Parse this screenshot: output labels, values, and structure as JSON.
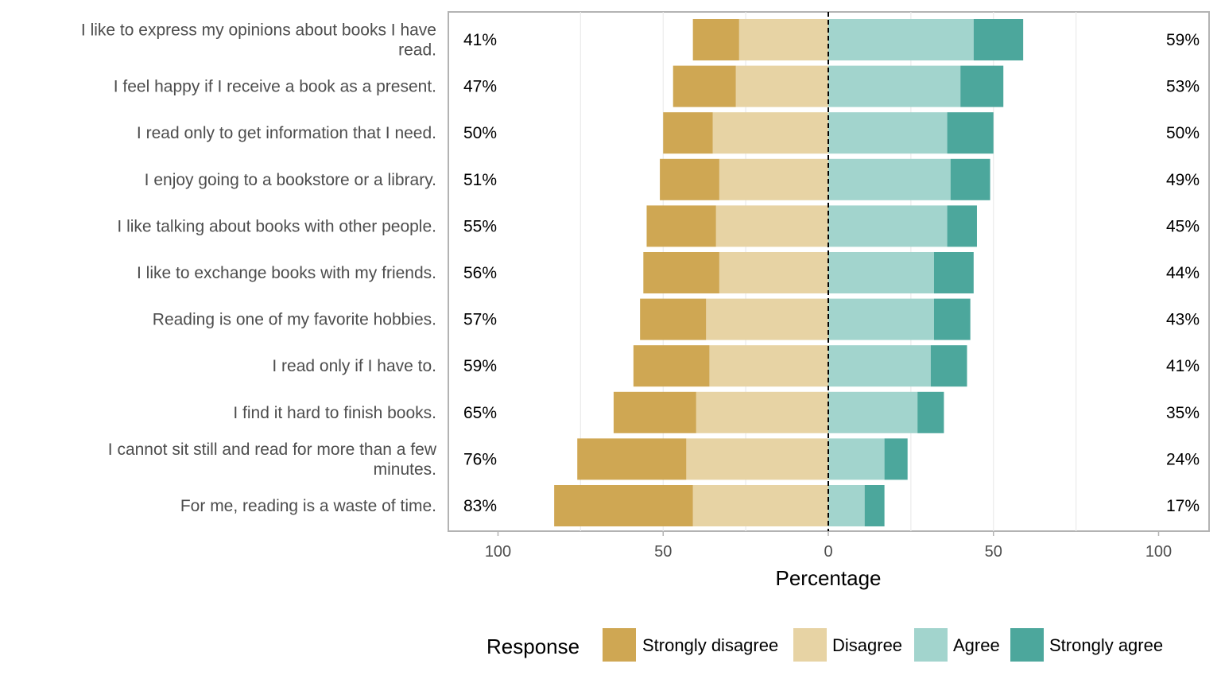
{
  "chart_data": {
    "type": "bar",
    "orientation": "horizontal-diverging",
    "xlabel": "Percentage",
    "xlim": [
      -100,
      100
    ],
    "xticks": [
      -100,
      -50,
      0,
      50,
      100
    ],
    "xtick_labels": [
      "100",
      "50",
      "0",
      "50",
      "100"
    ],
    "grid": true,
    "legend": {
      "title": "Response",
      "position": "bottom",
      "entries": [
        "Strongly disagree",
        "Disagree",
        "Agree",
        "Strongly agree"
      ]
    },
    "colors": {
      "Strongly disagree": "#cfa753",
      "Disagree": "#e7d3a4",
      "Agree": "#a2d4cd",
      "Strongly agree": "#4ca79c"
    },
    "categories": [
      "I like to express my opinions about books I have read.",
      "I feel happy if I receive a book as a present.",
      "I read only to get information that I need.",
      "I enjoy going to a bookstore or a library.",
      "I like talking about books with other people.",
      "I like to exchange books with my friends.",
      "Reading is one of my favorite hobbies.",
      "I read only if I have to.",
      "I find it hard to finish books.",
      "I cannot sit still and read for more than a few minutes.",
      "For me, reading is a waste of time."
    ],
    "category_lines": [
      [
        "I like to express my opinions about books I have",
        "read."
      ],
      [
        "I feel happy if I receive a book as a present."
      ],
      [
        "I read only to get information that I need."
      ],
      [
        "I enjoy going to a bookstore or a library."
      ],
      [
        "I like talking about books with other people."
      ],
      [
        "I like to exchange books with my friends."
      ],
      [
        "Reading is one of my favorite hobbies."
      ],
      [
        "I read only if I have to."
      ],
      [
        "I find it hard to finish books."
      ],
      [
        "I cannot sit still and read for more than a few",
        "minutes."
      ],
      [
        "For me, reading is a waste of time."
      ]
    ],
    "series": [
      {
        "name": "Strongly disagree",
        "values": [
          14,
          19,
          15,
          18,
          21,
          23,
          20,
          23,
          25,
          33,
          42
        ]
      },
      {
        "name": "Disagree",
        "values": [
          27,
          28,
          35,
          33,
          34,
          33,
          37,
          36,
          40,
          43,
          41
        ]
      },
      {
        "name": "Agree",
        "values": [
          44,
          40,
          36,
          37,
          36,
          32,
          32,
          31,
          27,
          17,
          11
        ]
      },
      {
        "name": "Strongly agree",
        "values": [
          15,
          13,
          14,
          12,
          9,
          12,
          11,
          11,
          8,
          7,
          6
        ]
      }
    ],
    "left_labels": [
      "41%",
      "47%",
      "50%",
      "51%",
      "55%",
      "56%",
      "57%",
      "59%",
      "65%",
      "76%",
      "83%"
    ],
    "right_labels": [
      "59%",
      "53%",
      "50%",
      "49%",
      "45%",
      "44%",
      "43%",
      "41%",
      "35%",
      "24%",
      "17%"
    ]
  }
}
